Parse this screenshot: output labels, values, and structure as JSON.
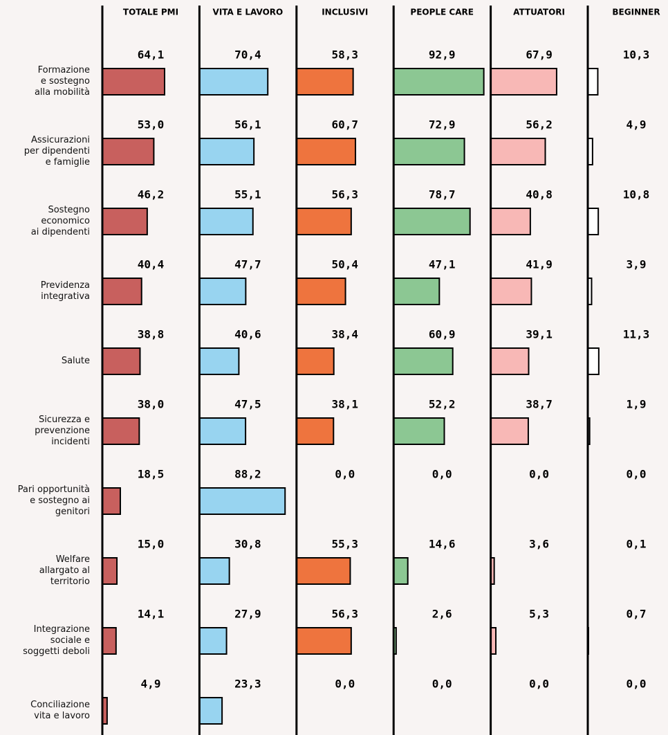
{
  "chart_data": {
    "type": "bar",
    "orientation": "horizontal",
    "categories": [
      "Formazione\ne sostegno\nalla mobilità",
      "Assicurazioni\nper dipendenti\ne famiglie",
      "Sostegno\neconomico\nai dipendenti",
      "Previdenza\nintegrativa",
      "Salute",
      "Sicurezza e\nprevenzione\nincidenti",
      "Pari opportunità\ne sostegno ai\ngenitori",
      "Welfare\nallargato al\nterritorio",
      "Integrazione\nsociale e\nsoggetti deboli",
      "Conciliazione\nvita e lavoro"
    ],
    "xlim": [
      0,
      100
    ],
    "series": [
      {
        "name": "TOTALE PMI",
        "color": "#c8605e",
        "values": [
          64.1,
          53.0,
          46.2,
          40.4,
          38.8,
          38.0,
          18.5,
          15.0,
          14.1,
          4.9
        ],
        "value_labels": [
          "64,1",
          "53,0",
          "46,2",
          "40,4",
          "38,8",
          "38,0",
          "18,5",
          "15,0",
          "14,1",
          "4,9"
        ]
      },
      {
        "name": "VITA E LAVORO",
        "color": "#98d4f0",
        "values": [
          70.4,
          56.1,
          55.1,
          47.7,
          40.6,
          47.5,
          88.2,
          30.8,
          27.9,
          23.3
        ],
        "value_labels": [
          "70,4",
          "56,1",
          "55,1",
          "47,7",
          "40,6",
          "47,5",
          "88,2",
          "30,8",
          "27,9",
          "23,3"
        ]
      },
      {
        "name": "INCLUSIVI",
        "color": "#ee743e",
        "values": [
          58.3,
          60.7,
          56.3,
          50.4,
          38.4,
          38.1,
          0.0,
          55.3,
          56.3,
          0.0
        ],
        "value_labels": [
          "58,3",
          "60,7",
          "56,3",
          "50,4",
          "38,4",
          "38,1",
          "0,0",
          "55,3",
          "56,3",
          "0,0"
        ]
      },
      {
        "name": "PEOPLE CARE",
        "color": "#8cc793",
        "values": [
          92.9,
          72.9,
          78.7,
          47.1,
          60.9,
          52.2,
          0.0,
          14.6,
          2.6,
          0.0
        ],
        "value_labels": [
          "92,9",
          "72,9",
          "78,7",
          "47,1",
          "60,9",
          "52,2",
          "0,0",
          "14,6",
          "2,6",
          "0,0"
        ]
      },
      {
        "name": "ATTUATORI",
        "color": "#f8b8b6",
        "values": [
          67.9,
          56.2,
          40.8,
          41.9,
          39.1,
          38.7,
          0.0,
          3.6,
          5.3,
          0.0
        ],
        "value_labels": [
          "67,9",
          "56,2",
          "40,8",
          "41,9",
          "39,1",
          "38,7",
          "0,0",
          "3,6",
          "5,3",
          "0,0"
        ]
      },
      {
        "name": "BEGINNER",
        "color": "#ffffff",
        "values": [
          10.3,
          4.9,
          10.8,
          3.9,
          11.3,
          1.9,
          0.0,
          0.1,
          0.7,
          0.0
        ],
        "value_labels": [
          "10,3",
          "4,9",
          "10,8",
          "3,9",
          "11,3",
          "1,9",
          "0,0",
          "0,1",
          "0,7",
          "0,0"
        ]
      }
    ]
  }
}
